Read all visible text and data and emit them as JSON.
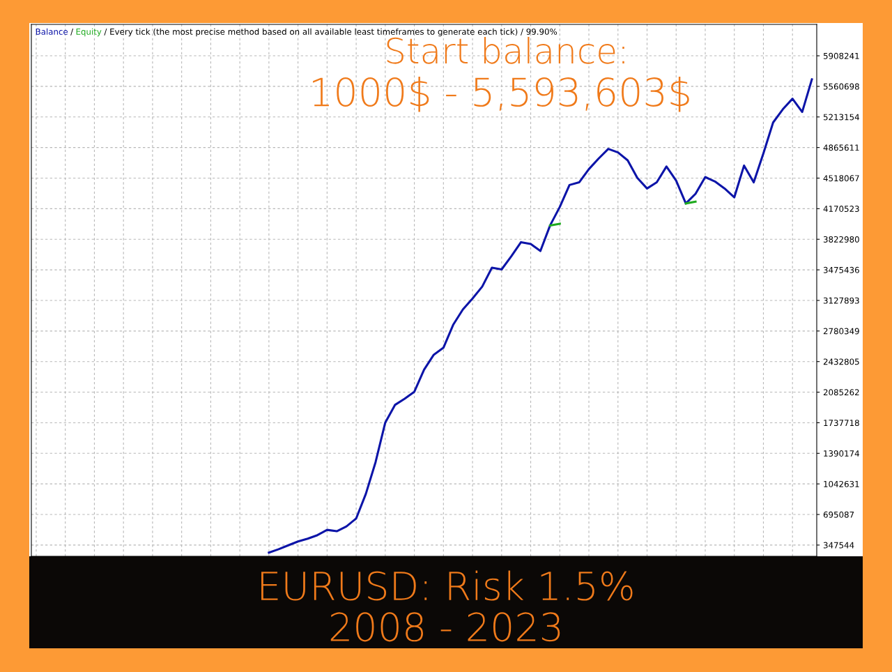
{
  "chart_data": {
    "type": "line",
    "title": "/ Every tick (the most precise method based on all available least timeframes to generate each tick) / 99.90%",
    "categories": [
      null,
      null,
      null,
      null,
      null,
      null,
      null,
      null,
      null,
      null,
      null,
      null,
      null,
      null,
      null,
      null,
      null,
      null,
      null,
      null,
      null,
      null,
      null,
      null,
      null,
      null,
      null,
      null,
      null,
      null,
      null,
      null,
      null,
      null,
      null,
      null,
      null,
      null,
      null,
      null,
      null,
      null,
      null,
      null,
      null,
      null,
      null,
      null,
      null,
      null,
      null,
      null,
      null,
      null,
      null,
      null,
      null,
      null,
      null,
      null,
      null,
      null,
      null,
      null,
      null,
      null,
      null,
      null,
      null,
      null,
      null,
      null,
      null,
      null,
      null,
      null,
      null,
      null,
      null,
      null,
      null
    ],
    "series": [
      {
        "name": "Balance",
        "color": "#0c14a8",
        "values": [
          null,
          null,
          null,
          null,
          null,
          null,
          null,
          null,
          null,
          null,
          null,
          null,
          null,
          null,
          null,
          null,
          null,
          null,
          null,
          null,
          null,
          null,
          null,
          null,
          262000,
          300000,
          345000,
          388000,
          420000,
          460000,
          520000,
          505000,
          560000,
          650000,
          930000,
          1290000,
          1740000,
          1940000,
          2010000,
          2090000,
          2340000,
          2510000,
          2590000,
          2850000,
          3025000,
          3150000,
          3285000,
          3500000,
          3480000,
          3630000,
          3790000,
          3770000,
          3690000,
          3980000,
          4190000,
          4440000,
          4470000,
          4620000,
          4740000,
          4850000,
          4810000,
          4720000,
          4520000,
          4400000,
          4470000,
          4650000,
          4490000,
          4230000,
          4340000,
          4530000,
          4480000,
          4400000,
          4300000,
          4660000,
          4470000,
          4800000,
          5150000,
          5300000,
          5420000,
          5270000,
          5640000
        ]
      },
      {
        "name": "Equity",
        "color": "#1faa1f",
        "values": [
          null,
          null,
          null,
          null,
          null,
          null,
          null,
          null,
          null,
          null,
          null,
          null,
          null,
          null,
          null,
          null,
          null,
          null,
          null,
          null,
          null,
          null,
          null,
          null,
          null,
          null,
          null,
          null,
          null,
          null,
          null,
          null,
          null,
          null,
          null,
          null,
          null,
          null,
          null,
          null,
          null,
          null,
          null,
          null,
          null,
          null,
          null,
          null,
          null,
          null,
          null,
          null,
          null,
          3980000,
          4000000,
          null,
          null,
          null,
          null,
          null,
          null,
          null,
          null,
          null,
          null,
          null,
          null,
          4230000,
          4250000,
          null,
          null,
          null,
          null,
          null,
          null,
          null,
          null,
          null,
          null,
          null,
          null
        ]
      }
    ],
    "ylim": [
      220000,
      6265000
    ],
    "yticks": [
      347544,
      695087,
      1042631,
      1390174,
      1737718,
      2085262,
      2432805,
      2780349,
      3127893,
      3475436,
      3822980,
      4170523,
      4518067,
      4865611,
      5213154,
      5560698,
      5908241
    ],
    "grid": true,
    "tick_labels": "y",
    "line_style": "solid",
    "annotations": [
      "/",
      "Start balance:",
      "1000$ - 5,593,603$",
      "EURUSD: Risk 1.5%",
      "2008 - 2023"
    ]
  }
}
